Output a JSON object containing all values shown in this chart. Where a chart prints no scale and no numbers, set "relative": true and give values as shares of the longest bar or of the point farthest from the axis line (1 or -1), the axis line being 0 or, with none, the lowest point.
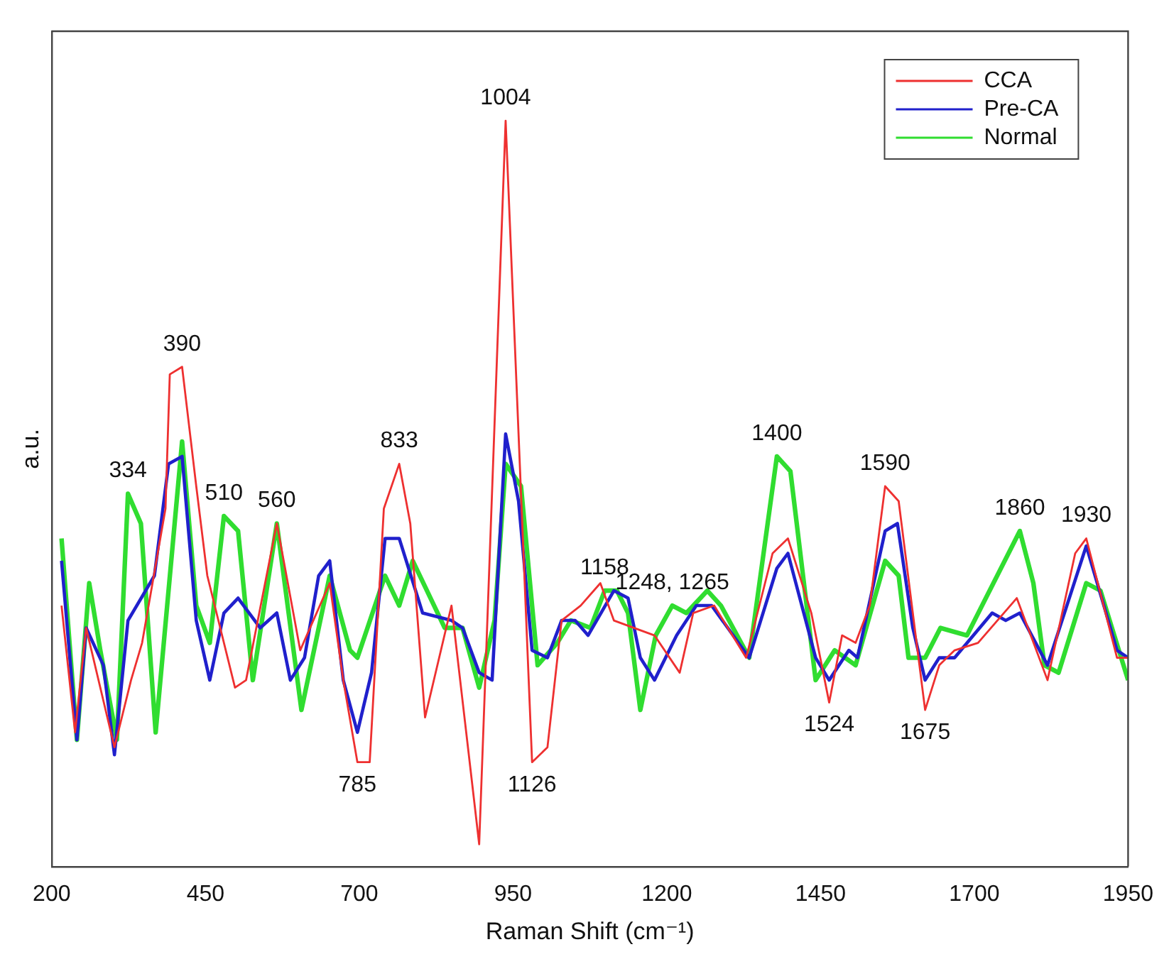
{
  "chart_data": {
    "type": "line",
    "relative": true,
    "xlabel": "Raman Shift (cm⁻¹)",
    "ylabel": "a.u.",
    "xlim": [
      200,
      1950
    ],
    "xticks": [
      200,
      450,
      700,
      950,
      1200,
      1450,
      1700,
      1950
    ],
    "grid": false,
    "legend": "top right",
    "series": [
      {
        "name": "CCA",
        "color": "#ee3030",
        "x": [
          216,
          238,
          256,
          302,
          329,
          347,
          385,
          392,
          412,
          435,
          453,
          498,
          516,
          566,
          604,
          652,
          674,
          697,
          717,
          740,
          765,
          783,
          807,
          850,
          895,
          938,
          981,
          1006,
          1029,
          1060,
          1092,
          1114,
          1180,
          1221,
          1243,
          1277,
          1329,
          1372,
          1397,
          1435,
          1464,
          1485,
          1507,
          1530,
          1555,
          1577,
          1600,
          1620,
          1643,
          1668,
          1706,
          1769,
          1819,
          1864,
          1882,
          1932,
          1950
        ],
        "values": [
          0.35,
          0.18,
          0.32,
          0.16,
          0.25,
          0.3,
          0.48,
          0.66,
          0.67,
          0.51,
          0.39,
          0.24,
          0.25,
          0.46,
          0.29,
          0.38,
          0.25,
          0.14,
          0.14,
          0.48,
          0.54,
          0.46,
          0.2,
          0.35,
          0.03,
          1.0,
          0.14,
          0.16,
          0.33,
          0.35,
          0.38,
          0.33,
          0.31,
          0.26,
          0.34,
          0.35,
          0.28,
          0.42,
          0.44,
          0.34,
          0.22,
          0.31,
          0.3,
          0.35,
          0.51,
          0.49,
          0.34,
          0.21,
          0.27,
          0.29,
          0.3,
          0.36,
          0.25,
          0.42,
          0.44,
          0.28,
          0.28
        ]
      },
      {
        "name": "Pre-CA",
        "color": "#2020cc",
        "x": [
          216,
          241,
          256,
          284,
          302,
          324,
          367,
          390,
          412,
          435,
          457,
          480,
          503,
          539,
          566,
          588,
          611,
          634,
          652,
          674,
          697,
          720,
          742,
          765,
          803,
          850,
          868,
          895,
          916,
          938,
          959,
          981,
          1006,
          1029,
          1051,
          1072,
          1114,
          1137,
          1157,
          1180,
          1216,
          1248,
          1273,
          1334,
          1379,
          1397,
          1442,
          1464,
          1496,
          1510,
          1555,
          1575,
          1600,
          1620,
          1643,
          1668,
          1729,
          1751,
          1774,
          1819,
          1882,
          1932,
          1950
        ],
        "values": [
          0.41,
          0.17,
          0.32,
          0.27,
          0.15,
          0.33,
          0.39,
          0.54,
          0.55,
          0.33,
          0.25,
          0.34,
          0.36,
          0.32,
          0.34,
          0.25,
          0.28,
          0.39,
          0.41,
          0.25,
          0.18,
          0.26,
          0.44,
          0.44,
          0.34,
          0.33,
          0.32,
          0.26,
          0.25,
          0.58,
          0.49,
          0.29,
          0.28,
          0.33,
          0.33,
          0.31,
          0.37,
          0.36,
          0.28,
          0.25,
          0.31,
          0.35,
          0.35,
          0.28,
          0.4,
          0.42,
          0.28,
          0.25,
          0.29,
          0.28,
          0.45,
          0.46,
          0.32,
          0.25,
          0.28,
          0.28,
          0.34,
          0.33,
          0.34,
          0.27,
          0.43,
          0.29,
          0.28
        ]
      },
      {
        "name": "Normal",
        "color": "#30dd30",
        "x": [
          216,
          241,
          261,
          279,
          306,
          324,
          345,
          369,
          412,
          435,
          457,
          480,
          503,
          527,
          566,
          606,
          652,
          685,
          697,
          742,
          765,
          787,
          839,
          868,
          895,
          920,
          938,
          963,
          990,
          1022,
          1044,
          1076,
          1099,
          1119,
          1137,
          1157,
          1182,
          1209,
          1232,
          1266,
          1288,
          1334,
          1379,
          1401,
          1442,
          1473,
          1507,
          1555,
          1577,
          1593,
          1620,
          1645,
          1688,
          1774,
          1796,
          1814,
          1837,
          1882,
          1905,
          1950
        ],
        "values": [
          0.44,
          0.17,
          0.38,
          0.29,
          0.17,
          0.5,
          0.46,
          0.18,
          0.57,
          0.35,
          0.3,
          0.47,
          0.45,
          0.25,
          0.46,
          0.21,
          0.39,
          0.29,
          0.28,
          0.39,
          0.35,
          0.41,
          0.32,
          0.32,
          0.24,
          0.33,
          0.54,
          0.51,
          0.27,
          0.3,
          0.33,
          0.32,
          0.37,
          0.37,
          0.34,
          0.21,
          0.31,
          0.35,
          0.34,
          0.37,
          0.35,
          0.28,
          0.55,
          0.53,
          0.25,
          0.29,
          0.27,
          0.41,
          0.39,
          0.28,
          0.28,
          0.32,
          0.31,
          0.45,
          0.38,
          0.27,
          0.26,
          0.38,
          0.37,
          0.25
        ]
      }
    ],
    "annotations": [
      {
        "text": "334",
        "x": 324,
        "y": 0.5
      },
      {
        "text": "390",
        "x": 412,
        "y": 0.67
      },
      {
        "text": "510",
        "x": 480,
        "y": 0.47
      },
      {
        "text": "560",
        "x": 566,
        "y": 0.46
      },
      {
        "text": "833",
        "x": 765,
        "y": 0.54
      },
      {
        "text": "1004",
        "x": 938,
        "y": 1.0
      },
      {
        "text": "785",
        "x": 697,
        "y": 0.14
      },
      {
        "text": "1126",
        "x": 981,
        "y": 0.14
      },
      {
        "text": "1158",
        "x": 1099,
        "y": 0.37
      },
      {
        "text": "1248, 1265",
        "x": 1209,
        "y": 0.35
      },
      {
        "text": "1400",
        "x": 1379,
        "y": 0.55
      },
      {
        "text": "1524",
        "x": 1464,
        "y": 0.22
      },
      {
        "text": "1590",
        "x": 1555,
        "y": 0.51
      },
      {
        "text": "1675",
        "x": 1620,
        "y": 0.21
      },
      {
        "text": "1860",
        "x": 1774,
        "y": 0.45
      },
      {
        "text": "1930",
        "x": 1882,
        "y": 0.44
      }
    ]
  }
}
